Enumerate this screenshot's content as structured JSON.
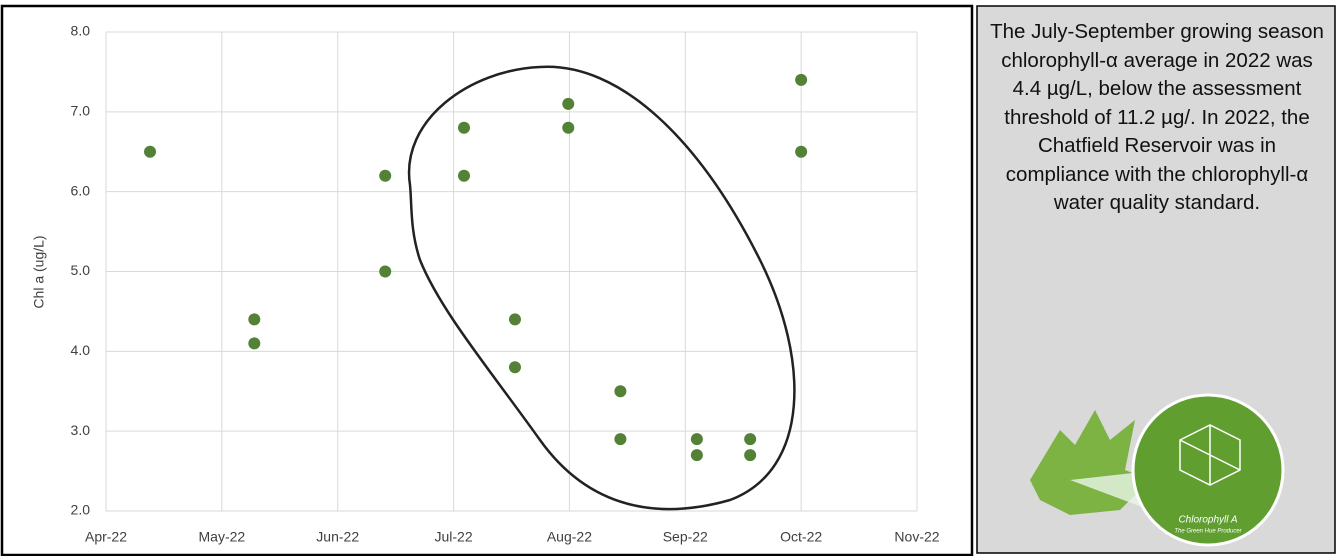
{
  "chart_data": {
    "type": "scatter",
    "y_label": "Chl a (ug/L)",
    "color": "#538135",
    "grid": true,
    "xlim": [
      4,
      11
    ],
    "xticks": [
      {
        "value": 4,
        "label": "Apr-22"
      },
      {
        "value": 5,
        "label": "May-22"
      },
      {
        "value": 6,
        "label": "Jun-22"
      },
      {
        "value": 7,
        "label": "Jul-22"
      },
      {
        "value": 8,
        "label": "Aug-22"
      },
      {
        "value": 9,
        "label": "Sep-22"
      },
      {
        "value": 10,
        "label": "Oct-22"
      },
      {
        "value": 11,
        "label": "Nov-22"
      }
    ],
    "ylim": [
      2,
      8
    ],
    "yticks": [
      {
        "value": 2,
        "label": "2.0"
      },
      {
        "value": 3,
        "label": "3.0"
      },
      {
        "value": 4,
        "label": "4.0"
      },
      {
        "value": 5,
        "label": "5.0"
      },
      {
        "value": 6,
        "label": "6.0"
      },
      {
        "value": 7,
        "label": "7.0"
      },
      {
        "value": 8,
        "label": "8.0"
      }
    ],
    "x": [
      4.38,
      5.28,
      5.28,
      6.41,
      6.41,
      7.09,
      7.09,
      7.53,
      7.53,
      7.99,
      7.99,
      8.44,
      8.44,
      9.1,
      9.1,
      9.56,
      9.56,
      10.0,
      10.0
    ],
    "values": [
      6.5,
      4.4,
      4.1,
      6.2,
      5.0,
      6.8,
      6.2,
      4.4,
      3.8,
      7.1,
      6.8,
      3.5,
      2.9,
      2.9,
      2.7,
      2.9,
      2.7,
      7.4,
      6.5
    ]
  },
  "side_panel": {
    "text": "The July-September growing season chlorophyll-α average in 2022 was 4.4 µg/L, below the assessment threshold of 11.2 µg/. In 2022, the Chatfield Reservoir was in compliance with the chlorophyll-α water quality standard.",
    "image_caption": "Chlorophyll A",
    "image_subcaption": "The Green Hue Producer"
  }
}
